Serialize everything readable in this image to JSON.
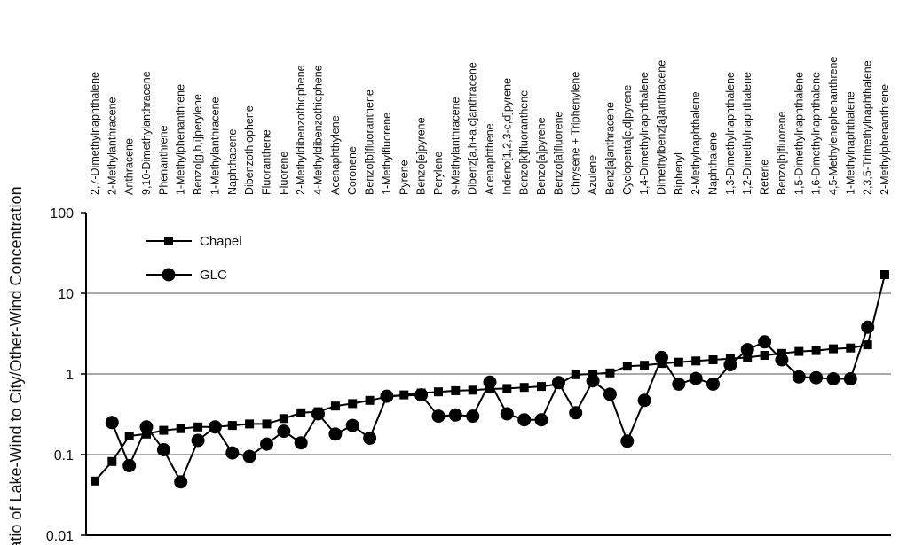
{
  "chart_data": {
    "type": "line",
    "ylabel": "Ratio of Lake-Wind to City/Other-Wind Concentration",
    "yscale": "log",
    "ylim": [
      0.01,
      100
    ],
    "yticks": [
      "100",
      "10",
      "1",
      "0.1",
      "0.01"
    ],
    "ytick_values": [
      100,
      10,
      1,
      0.1,
      0.01
    ],
    "grid": "horizontal",
    "legend_position": "top-left",
    "categories": [
      "2,7-Dimethylnaphthalene",
      "2-Methylanthracene",
      "Anthracene",
      "9,10-Dimethylanthracene",
      "Phenanthrene",
      "1-Methylphenanthrene",
      "Benzo[g,h,i]perylene",
      "1-Methylanthracene",
      "Naphthacene",
      "Dibenzothiophene",
      "Fluoranthene",
      "Fluorene",
      "2-Methyldibenzothiophene",
      "4-Methyldibenzothiophene",
      "Acenaphthylene",
      "Coronene",
      "Benzo[b]fluoranthene",
      "1-Methylfluorene",
      "Pyrene",
      "Benzo[e]pyrene",
      "Perylene",
      "9-Methylanthracene",
      "Dibenz[a,h+a,c]anthracene",
      "Acenaphthene",
      "Indeno[1,2,3-c,d]pyrene",
      "Benzo[k]fluoranthene",
      "Benzo[a]pyrene",
      "Benzo[a]fluorene",
      "Chrysene + Triphenylene",
      "Azulene",
      "Benz[a]anthracene",
      "Cyclopenta[c,d]pyrene",
      "1,4-Dimethylnaphthalene",
      "Dimethylbenz[a]anthracene",
      "Biphenyl",
      "2-Methylnaphthalene",
      "Naphthalene",
      "1,3-Dimethylnaphthalene",
      "1,2-Dimethylnaphthalene",
      "Retene",
      "Benzo[b]fluorene",
      "1,5-Dimethylnaphthalene",
      "1,6-Dimethylnaphthalene",
      "4,5-Methylenephenanthrene",
      "1-Methylnaphthalene",
      "2,3,5-Trimethylnaphthalene",
      "2-Methylphenanthrene"
    ],
    "series": [
      {
        "name": "Chapel",
        "marker": "square",
        "values": [
          0.047,
          0.082,
          0.17,
          0.18,
          0.2,
          0.21,
          0.22,
          0.22,
          0.23,
          0.24,
          0.24,
          0.28,
          0.33,
          0.34,
          0.4,
          0.43,
          0.47,
          0.52,
          0.55,
          0.58,
          0.6,
          0.62,
          0.63,
          0.65,
          0.66,
          0.68,
          0.7,
          0.75,
          0.98,
          1.0,
          1.03,
          1.25,
          1.28,
          1.35,
          1.4,
          1.45,
          1.5,
          1.55,
          1.6,
          1.7,
          1.8,
          1.9,
          1.95,
          2.05,
          2.1,
          2.3,
          17
        ]
      },
      {
        "name": "GLC",
        "marker": "circle",
        "values": [
          null,
          0.25,
          0.073,
          0.22,
          0.115,
          0.046,
          0.15,
          0.22,
          0.105,
          0.095,
          0.135,
          0.195,
          0.14,
          0.32,
          0.18,
          0.23,
          0.16,
          0.53,
          null,
          0.55,
          0.3,
          0.31,
          0.3,
          0.79,
          0.32,
          0.27,
          0.27,
          0.78,
          0.33,
          0.82,
          0.56,
          0.147,
          0.47,
          1.6,
          0.75,
          0.88,
          0.75,
          1.3,
          2.0,
          2.5,
          1.5,
          0.92,
          0.9,
          0.87,
          0.87,
          3.8,
          null
        ]
      }
    ]
  }
}
